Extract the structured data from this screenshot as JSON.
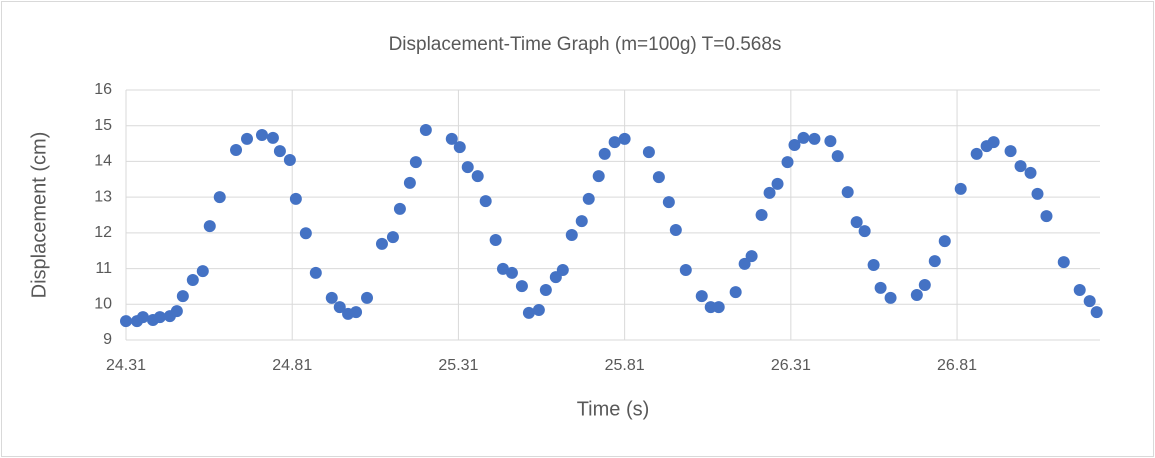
{
  "chart_data": {
    "type": "scatter",
    "title": "Displacement-Time Graph (m=100g) T=0.568s",
    "x_label": "Time (s)",
    "y_label": "Displacement (cm)",
    "color": "#4472c4",
    "grid": true,
    "xlim": [
      24.31,
      27.24
    ],
    "xticks": [
      24.31,
      24.81,
      25.31,
      25.81,
      26.31,
      26.81
    ],
    "ylim": [
      9,
      16
    ],
    "yticks": [
      9,
      10,
      11,
      12,
      13,
      14,
      15,
      16
    ],
    "x": [
      24.31,
      24.343,
      24.361,
      24.391,
      24.412,
      24.442,
      24.463,
      24.481,
      24.511,
      24.541,
      24.562,
      24.592,
      24.641,
      24.674,
      24.719,
      24.752,
      24.773,
      24.803,
      24.821,
      24.851,
      24.881,
      24.929,
      24.953,
      24.978,
      25.002,
      25.035,
      25.08,
      25.113,
      25.134,
      25.164,
      25.182,
      25.212,
      25.29,
      25.314,
      25.338,
      25.368,
      25.392,
      25.422,
      25.444,
      25.471,
      25.501,
      25.522,
      25.552,
      25.573,
      25.603,
      25.624,
      25.651,
      25.681,
      25.702,
      25.732,
      25.75,
      25.78,
      25.81,
      25.883,
      25.913,
      25.943,
      25.964,
      25.994,
      26.042,
      26.069,
      26.093,
      26.144,
      26.171,
      26.192,
      26.222,
      26.246,
      26.27,
      26.3,
      26.321,
      26.348,
      26.381,
      26.429,
      26.451,
      26.481,
      26.508,
      26.532,
      26.559,
      26.58,
      26.61,
      26.689,
      26.713,
      26.743,
      26.773,
      26.821,
      26.869,
      26.899,
      26.92,
      26.971,
      27.001,
      27.031,
      27.052,
      27.079,
      27.131,
      27.179,
      27.209,
      27.23
    ],
    "values": [
      9.53,
      9.53,
      9.64,
      9.56,
      9.64,
      9.67,
      9.81,
      10.23,
      10.68,
      10.93,
      12.19,
      13.0,
      14.32,
      14.63,
      14.74,
      14.66,
      14.29,
      14.04,
      12.95,
      11.99,
      10.88,
      10.18,
      9.92,
      9.73,
      9.78,
      10.18,
      11.69,
      11.88,
      12.67,
      13.4,
      13.98,
      14.88,
      14.63,
      14.4,
      13.84,
      13.59,
      12.89,
      11.8,
      10.99,
      10.88,
      10.51,
      9.76,
      9.84,
      10.4,
      10.76,
      10.96,
      11.94,
      12.33,
      12.95,
      13.59,
      14.21,
      14.54,
      14.63,
      14.26,
      13.56,
      12.86,
      12.08,
      10.96,
      10.23,
      9.92,
      9.92,
      10.34,
      11.13,
      11.35,
      12.5,
      13.12,
      13.37,
      13.98,
      14.46,
      14.66,
      14.63,
      14.57,
      14.15,
      13.14,
      12.3,
      12.05,
      11.1,
      10.46,
      10.18,
      10.26,
      10.54,
      11.21,
      11.77,
      13.23,
      14.21,
      14.43,
      14.54,
      14.29,
      13.87,
      13.68,
      13.09,
      12.47,
      11.18,
      10.4,
      10.09,
      9.78
    ]
  }
}
